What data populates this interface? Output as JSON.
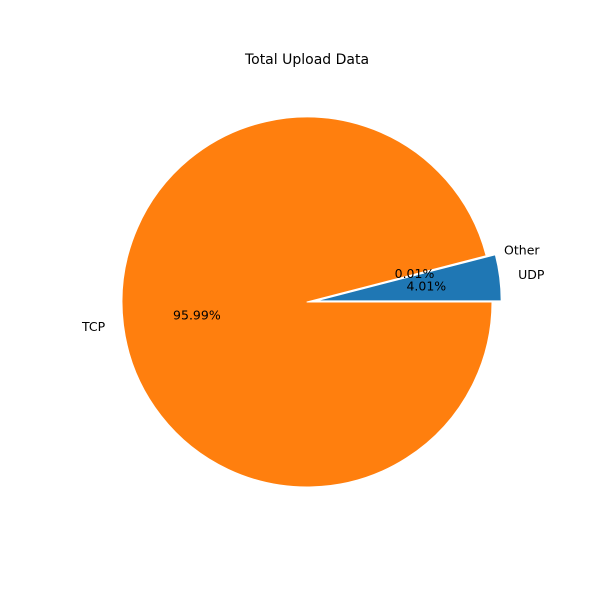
{
  "chart_data": {
    "type": "pie",
    "title": "Total Upload Data",
    "slices": [
      {
        "label": "UDP",
        "value": 4.01,
        "pct_label": "4.01%",
        "color": "#1f77b4",
        "exploded": true
      },
      {
        "label": "Other",
        "value": 0.01,
        "pct_label": "0.01%",
        "color": "#2ca02c",
        "exploded": false
      },
      {
        "label": "TCP",
        "value": 95.99,
        "pct_label": "95.99%",
        "color": "#ff7f0e",
        "exploded": false
      }
    ],
    "start_angle_deg": 0,
    "direction": "counterclockwise"
  }
}
